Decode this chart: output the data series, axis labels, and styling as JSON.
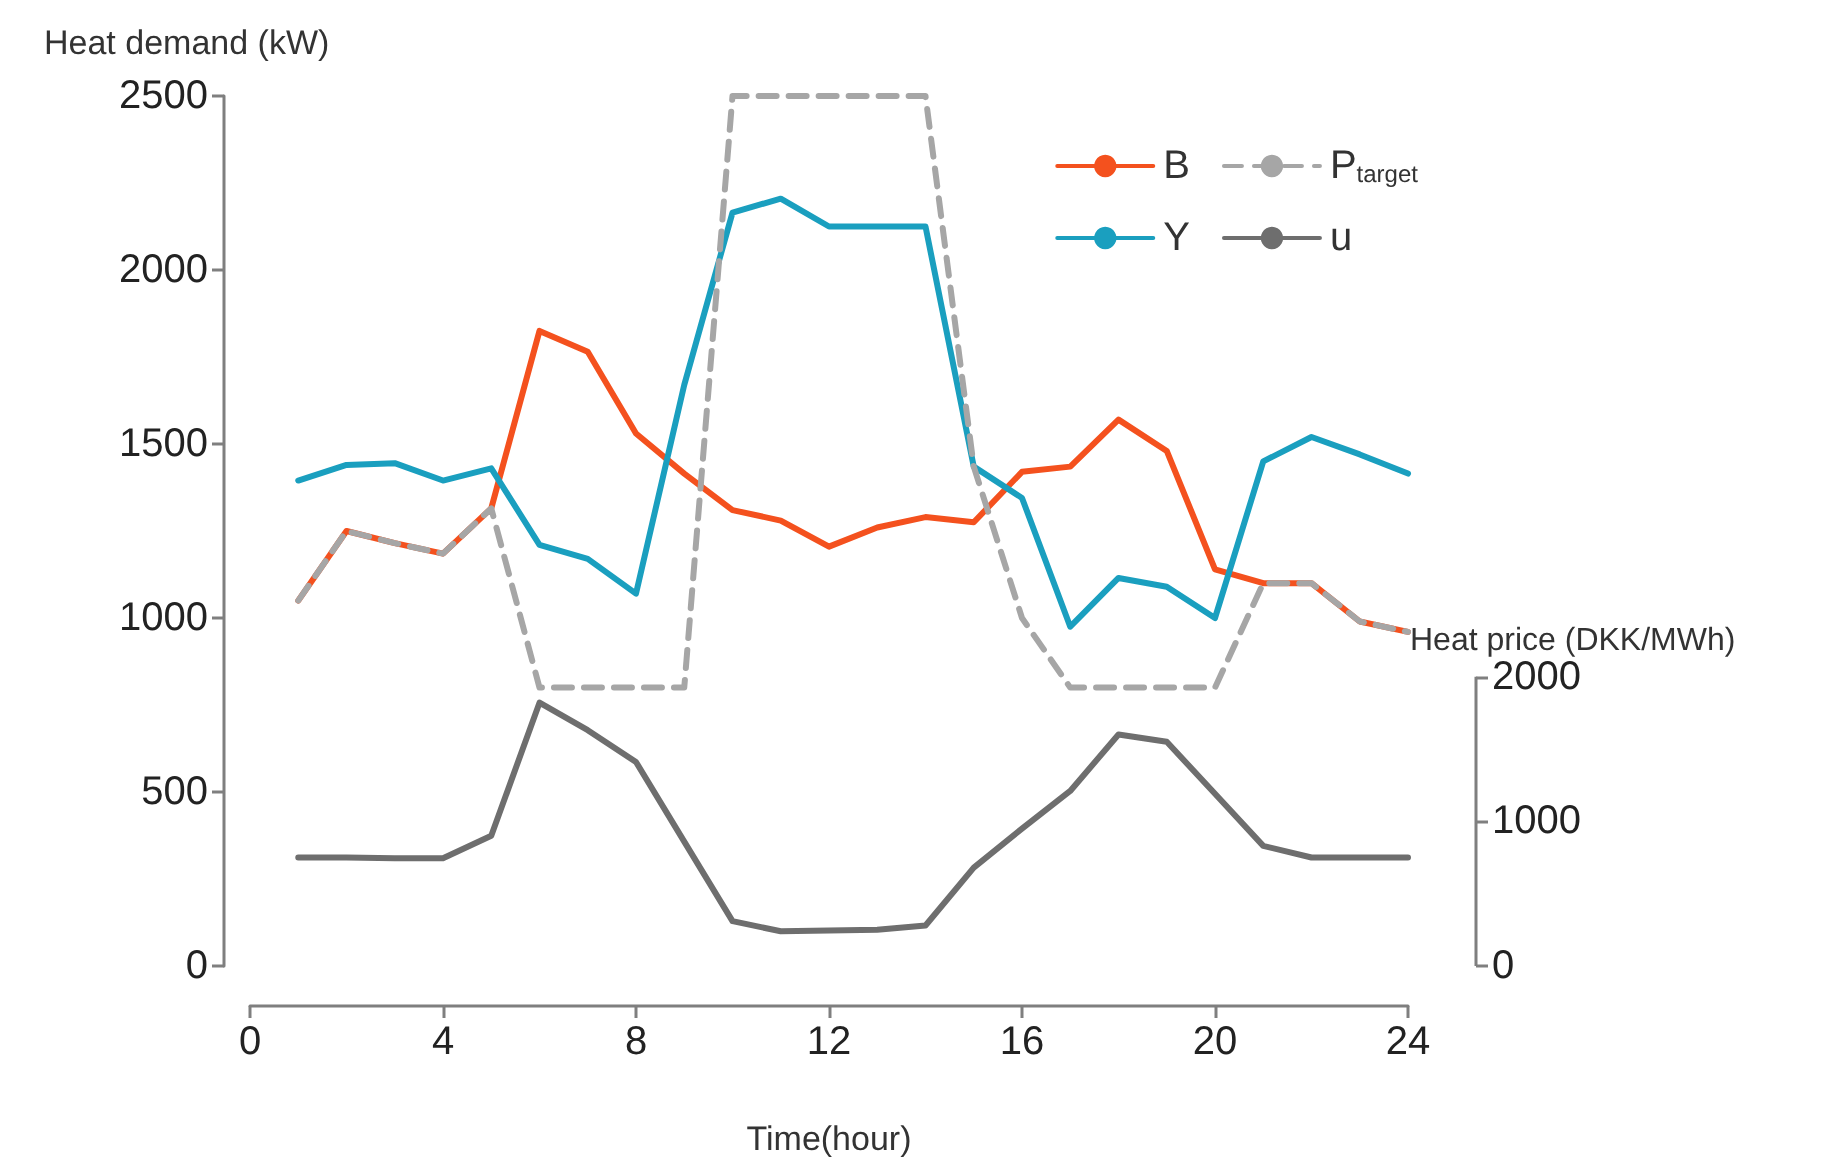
{
  "chart_data": {
    "type": "line",
    "xlabel": "Time(hour)",
    "ylabel": "Heat demand (kW)",
    "y2label": "Heat price (DKK/MWh)",
    "x": [
      1,
      2,
      3,
      4,
      5,
      6,
      7,
      8,
      9,
      10,
      11,
      12,
      13,
      14,
      15,
      16,
      17,
      18,
      19,
      20,
      21,
      22,
      23,
      24
    ],
    "xlim": [
      0,
      24
    ],
    "xticks": [
      0,
      4,
      8,
      12,
      16,
      20,
      24
    ],
    "ylim": [
      0,
      2500
    ],
    "yticks": [
      0,
      500,
      1000,
      1500,
      2000,
      2500
    ],
    "y2lim": [
      0,
      2000
    ],
    "y2ticks": [
      0,
      1000,
      2000
    ],
    "series": [
      {
        "name": "B",
        "color": "#f4511e",
        "line_style": "solid",
        "values": [
          1050,
          1250,
          1215,
          1185,
          1315,
          1825,
          1765,
          1530,
          1415,
          1310,
          1280,
          1205,
          1260,
          1290,
          1275,
          1420,
          1435,
          1570,
          1480,
          1140,
          1100,
          1100,
          990,
          960
        ]
      },
      {
        "name": "P$_{target}$",
        "color": "#a6a6a6",
        "line_style": "dashed",
        "values": [
          1050,
          1250,
          1215,
          1185,
          1315,
          800,
          800,
          800,
          800,
          2500,
          2500,
          2500,
          2500,
          2500,
          1435,
          1000,
          800,
          800,
          800,
          800,
          1100,
          1100,
          990,
          960
        ]
      },
      {
        "name": "Y",
        "color": "#1a9fbf",
        "line_style": "solid",
        "values": [
          1395,
          1440,
          1445,
          1395,
          1430,
          1210,
          1170,
          1070,
          1670,
          2165,
          2205,
          2125,
          2125,
          2125,
          1435,
          1345,
          975,
          1115,
          1090,
          1000,
          1450,
          1520,
          1470,
          1415
        ]
      },
      {
        "name": "u",
        "color": "#6e6e6e",
        "line_style": "solid",
        "axis": "y2",
        "values": [
          750,
          750,
          745,
          745,
          900,
          1820,
          1630,
          1410,
          860,
          310,
          240,
          245,
          250,
          280,
          680,
          950,
          1210,
          1600,
          1550,
          1190,
          830,
          750,
          750,
          750
        ]
      }
    ],
    "grid": false,
    "legend": "top right",
    "marker": "none"
  }
}
